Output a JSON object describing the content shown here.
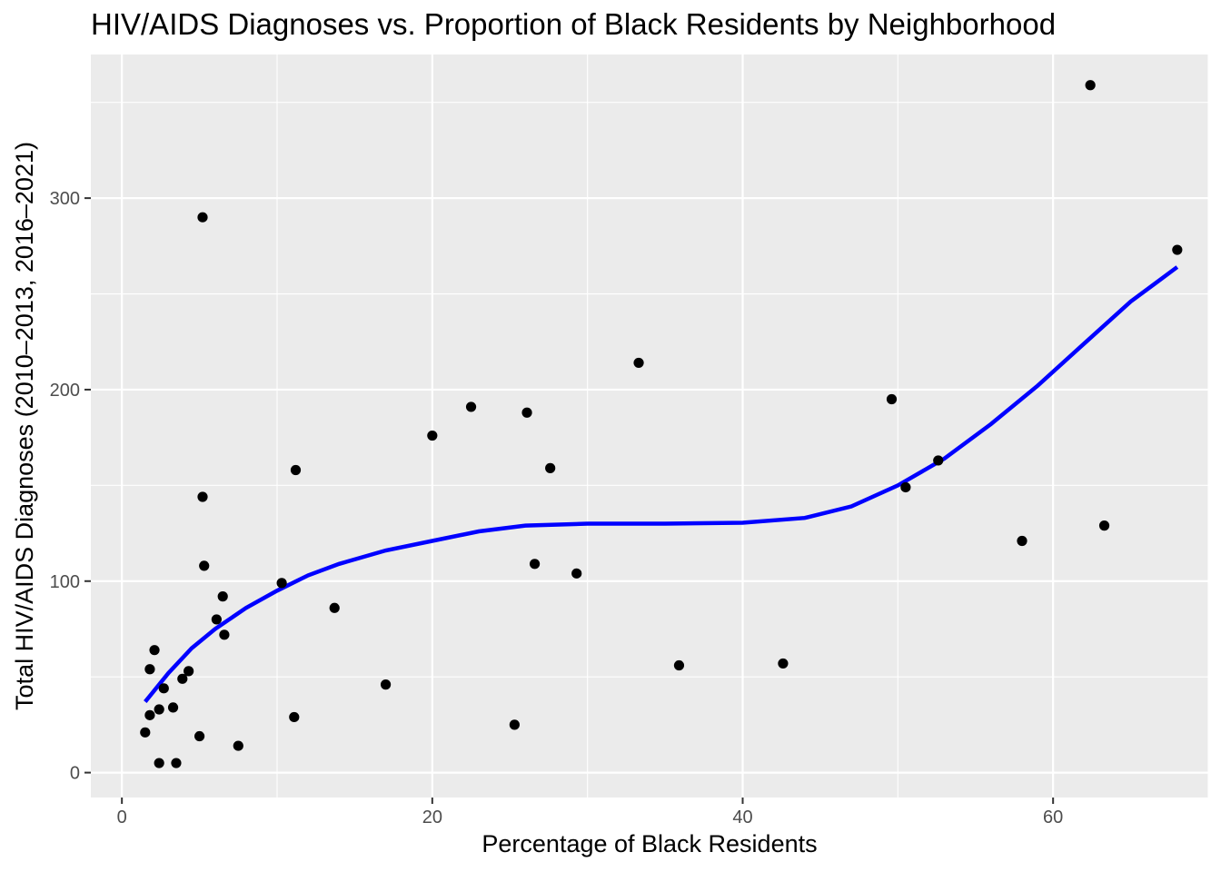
{
  "chart_data": {
    "type": "scatter",
    "title": "HIV/AIDS Diagnoses vs. Proportion of Black Residents by Neighborhood",
    "xlabel": "Percentage of Black Residents",
    "ylabel": "Total HIV/AIDS Diagnoses (2010–2013, 2016–2021)",
    "xlim": [
      -2,
      70
    ],
    "ylim": [
      -13,
      375
    ],
    "x_ticks": [
      0,
      20,
      40,
      60
    ],
    "y_ticks": [
      0,
      100,
      200,
      300
    ],
    "x_tick_labels": [
      "0",
      "20",
      "40",
      "60"
    ],
    "y_tick_labels": [
      "0",
      "100",
      "200",
      "300"
    ],
    "grid": true,
    "legend": "none",
    "colors": {
      "panel": "#ebebeb",
      "grid": "#ffffff",
      "point": "#000000",
      "smooth": "#0000ff"
    },
    "points": [
      {
        "x": 1.5,
        "y": 21
      },
      {
        "x": 1.8,
        "y": 54
      },
      {
        "x": 1.8,
        "y": 30
      },
      {
        "x": 2.1,
        "y": 64
      },
      {
        "x": 2.4,
        "y": 33
      },
      {
        "x": 2.4,
        "y": 5
      },
      {
        "x": 2.7,
        "y": 44
      },
      {
        "x": 3.3,
        "y": 34
      },
      {
        "x": 3.5,
        "y": 5
      },
      {
        "x": 3.9,
        "y": 49
      },
      {
        "x": 4.3,
        "y": 53
      },
      {
        "x": 5.0,
        "y": 19
      },
      {
        "x": 5.2,
        "y": 290
      },
      {
        "x": 5.2,
        "y": 144
      },
      {
        "x": 5.3,
        "y": 108
      },
      {
        "x": 6.1,
        "y": 80
      },
      {
        "x": 6.5,
        "y": 92
      },
      {
        "x": 6.6,
        "y": 72
      },
      {
        "x": 7.5,
        "y": 14
      },
      {
        "x": 10.3,
        "y": 99
      },
      {
        "x": 11.1,
        "y": 29
      },
      {
        "x": 11.2,
        "y": 158
      },
      {
        "x": 13.7,
        "y": 86
      },
      {
        "x": 17.0,
        "y": 46
      },
      {
        "x": 20.0,
        "y": 176
      },
      {
        "x": 22.5,
        "y": 191
      },
      {
        "x": 25.3,
        "y": 25
      },
      {
        "x": 26.1,
        "y": 188
      },
      {
        "x": 26.6,
        "y": 109
      },
      {
        "x": 27.6,
        "y": 159
      },
      {
        "x": 29.3,
        "y": 104
      },
      {
        "x": 33.3,
        "y": 214
      },
      {
        "x": 35.9,
        "y": 56
      },
      {
        "x": 42.6,
        "y": 57
      },
      {
        "x": 49.6,
        "y": 195
      },
      {
        "x": 50.5,
        "y": 149
      },
      {
        "x": 52.6,
        "y": 163
      },
      {
        "x": 58.0,
        "y": 121
      },
      {
        "x": 62.4,
        "y": 359
      },
      {
        "x": 63.3,
        "y": 129
      },
      {
        "x": 68.0,
        "y": 273
      }
    ],
    "smooth": [
      {
        "x": 1.5,
        "y": 37
      },
      {
        "x": 3,
        "y": 52
      },
      {
        "x": 4.5,
        "y": 65
      },
      {
        "x": 6,
        "y": 75
      },
      {
        "x": 8,
        "y": 86
      },
      {
        "x": 10,
        "y": 95
      },
      {
        "x": 12,
        "y": 103
      },
      {
        "x": 14,
        "y": 109
      },
      {
        "x": 17,
        "y": 116
      },
      {
        "x": 20,
        "y": 121
      },
      {
        "x": 23,
        "y": 126
      },
      {
        "x": 26,
        "y": 129
      },
      {
        "x": 30,
        "y": 130
      },
      {
        "x": 35,
        "y": 130
      },
      {
        "x": 40,
        "y": 130.5
      },
      {
        "x": 44,
        "y": 133
      },
      {
        "x": 47,
        "y": 139
      },
      {
        "x": 50,
        "y": 150
      },
      {
        "x": 53,
        "y": 164
      },
      {
        "x": 56,
        "y": 182
      },
      {
        "x": 59,
        "y": 202
      },
      {
        "x": 62,
        "y": 224
      },
      {
        "x": 65,
        "y": 246
      },
      {
        "x": 68,
        "y": 264
      }
    ]
  }
}
